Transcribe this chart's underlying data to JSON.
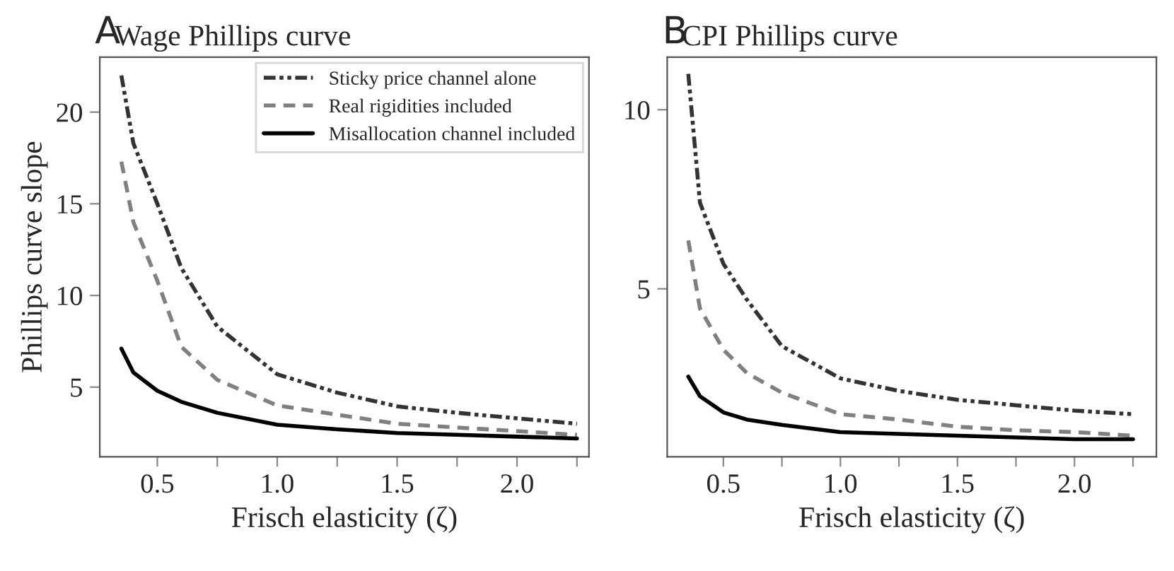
{
  "chart_data": [
    {
      "type": "line",
      "title": "Wage Phillips curve",
      "annotations": [
        "A"
      ],
      "xlabel": "Frisch elasticity (ζ)",
      "ylabel": "Phillips curve slope",
      "legend": "top right",
      "grid": false,
      "marker": "none",
      "xlim": [
        0.26,
        2.3
      ],
      "ylim": [
        1.2,
        23.0
      ],
      "xticks": [
        {
          "value": 0.5,
          "label": "0.5"
        },
        {
          "value": 0.75,
          "label": null
        },
        {
          "value": 1.0,
          "label": "1.0"
        },
        {
          "value": 1.25,
          "label": null
        },
        {
          "value": 1.5,
          "label": "1.5"
        },
        {
          "value": 1.75,
          "label": null
        },
        {
          "value": 2.0,
          "label": "2.0"
        },
        {
          "value": 2.25,
          "label": null
        }
      ],
      "yticks": [
        5,
        10,
        15,
        20
      ],
      "x": [
        0.35,
        0.4,
        0.5,
        0.6,
        0.75,
        1.0,
        1.25,
        1.5,
        1.75,
        2.0,
        2.25
      ],
      "series": [
        {
          "name": "Sticky price channel alone",
          "color": "#333333",
          "line_style": "dashdot",
          "values": [
            22.0,
            18.3,
            15.0,
            11.5,
            8.3,
            5.7,
            4.7,
            3.95,
            3.6,
            3.3,
            3.0
          ]
        },
        {
          "name": "Real rigidities included",
          "color": "#808080",
          "line_style": "dashed",
          "values": [
            17.3,
            14.0,
            10.8,
            7.2,
            5.4,
            4.0,
            3.5,
            3.0,
            2.8,
            2.6,
            2.4
          ]
        },
        {
          "name": "Misallocation channel included",
          "color": "#000000",
          "line_style": "solid",
          "values": [
            7.1,
            5.8,
            4.8,
            4.2,
            3.6,
            2.95,
            2.7,
            2.5,
            2.4,
            2.3,
            2.2
          ]
        }
      ]
    },
    {
      "type": "line",
      "title": "CPI Phillips curve",
      "annotations": [
        "B"
      ],
      "xlabel": "Frisch elasticity (ζ)",
      "grid": false,
      "marker": "none",
      "xlim": [
        0.26,
        2.35
      ],
      "ylim": [
        0.31,
        11.47
      ],
      "xticks": [
        {
          "value": 0.5,
          "label": "0.5"
        },
        {
          "value": 0.75,
          "label": null
        },
        {
          "value": 1.0,
          "label": "1.0"
        },
        {
          "value": 1.25,
          "label": null
        },
        {
          "value": 1.5,
          "label": "1.5"
        },
        {
          "value": 1.75,
          "label": null
        },
        {
          "value": 2.0,
          "label": "2.0"
        },
        {
          "value": 2.25,
          "label": null
        }
      ],
      "yticks": [
        5,
        10
      ],
      "x": [
        0.35,
        0.4,
        0.5,
        0.6,
        0.75,
        1.0,
        1.25,
        1.5,
        1.75,
        2.0,
        2.25
      ],
      "series": [
        {
          "color": "#333333",
          "line_style": "dashdot",
          "values": [
            11.0,
            7.4,
            5.7,
            4.7,
            3.4,
            2.5,
            2.15,
            1.9,
            1.75,
            1.6,
            1.5
          ]
        },
        {
          "color": "#808080",
          "line_style": "dashed",
          "values": [
            6.35,
            4.45,
            3.3,
            2.65,
            2.1,
            1.5,
            1.35,
            1.15,
            1.05,
            1.0,
            0.9
          ]
        },
        {
          "color": "#000000",
          "line_style": "solid",
          "values": [
            2.55,
            2.0,
            1.55,
            1.35,
            1.2,
            1.0,
            0.95,
            0.9,
            0.85,
            0.8,
            0.8
          ]
        }
      ]
    }
  ]
}
